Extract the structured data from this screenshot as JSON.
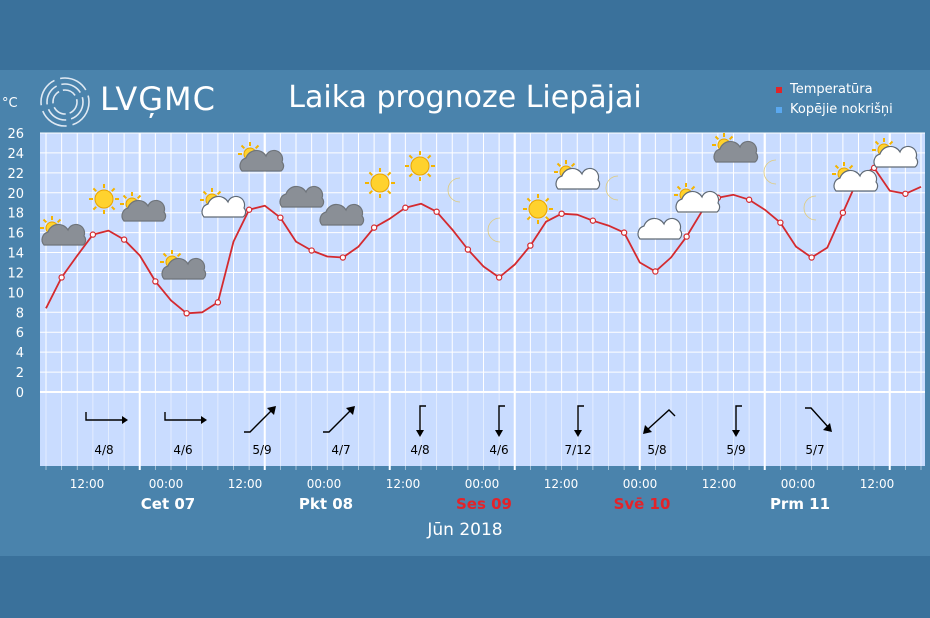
{
  "header": {
    "logo_text": "LVĢMC",
    "title": "Laika prognoze Liepājai",
    "unit": "°C"
  },
  "legend": [
    {
      "label": "Temperatūra",
      "color": "#e0252a"
    },
    {
      "label": "Kopējie nokrišņi",
      "color": "#5aa8f0"
    }
  ],
  "footer": {
    "month": "Jūn 2018"
  },
  "chart_data": {
    "type": "line",
    "ylim": [
      0,
      26
    ],
    "yticks": [
      0,
      2,
      4,
      6,
      8,
      10,
      12,
      14,
      16,
      18,
      20,
      22,
      24,
      26
    ],
    "xlim": [
      0,
      105
    ],
    "series": [
      {
        "name": "Temperatūra",
        "color": "#d42a2f",
        "points": [
          [
            0,
            8.4
          ],
          [
            3,
            11.5
          ],
          [
            6,
            13.7
          ],
          [
            9,
            15.8
          ],
          [
            12,
            16.2
          ],
          [
            15,
            15.3
          ],
          [
            18,
            13.7
          ],
          [
            21,
            11.1
          ],
          [
            24,
            9.2
          ],
          [
            27,
            7.9
          ],
          [
            30,
            8
          ],
          [
            33,
            9
          ],
          [
            36,
            15.1
          ],
          [
            39,
            18.3
          ],
          [
            42,
            18.7
          ],
          [
            45,
            17.5
          ],
          [
            48,
            15.1
          ],
          [
            51,
            14.2
          ],
          [
            54,
            13.6
          ],
          [
            57,
            13.5
          ],
          [
            60,
            14.6
          ],
          [
            63,
            16.5
          ],
          [
            66,
            17.4
          ],
          [
            69,
            18.5
          ],
          [
            72,
            18.9
          ],
          [
            75,
            18.1
          ],
          [
            78,
            16.3
          ],
          [
            81,
            14.3
          ],
          [
            84,
            12.6
          ],
          [
            87,
            11.5
          ],
          [
            90,
            12.8
          ],
          [
            93,
            14.7
          ],
          [
            96,
            17.1
          ],
          [
            99,
            17.9
          ],
          [
            102,
            17.8
          ],
          [
            105,
            17.2
          ]
        ],
        "points2": [
          [
            108,
            16.7
          ],
          [
            111,
            16
          ],
          [
            114,
            13
          ],
          [
            117,
            12.1
          ],
          [
            120,
            13.5
          ],
          [
            123,
            15.6
          ],
          [
            126,
            18.2
          ],
          [
            129,
            19.5
          ],
          [
            132,
            19.8
          ],
          [
            135,
            19.3
          ],
          [
            138,
            18.3
          ],
          [
            141,
            17
          ],
          [
            144,
            14.6
          ],
          [
            147,
            13.5
          ],
          [
            150,
            14.5
          ],
          [
            153,
            18
          ],
          [
            156,
            21.5
          ],
          [
            159,
            22.5
          ],
          [
            162,
            20.2
          ],
          [
            165,
            19.9
          ],
          [
            168,
            20.6
          ]
        ],
        "markers": [
          3,
          9,
          15,
          21,
          27,
          33,
          39,
          45,
          51,
          57,
          63,
          69,
          75,
          81,
          87,
          93,
          99,
          105,
          111,
          117,
          123,
          129,
          135,
          141,
          147,
          153,
          159,
          165
        ]
      }
    ],
    "xticks": [
      "12:00",
      "00:00",
      "12:00",
      "00:00",
      "12:00",
      "00:00",
      "12:00",
      "00:00",
      "12:00",
      "00:00",
      "12:00"
    ],
    "days": [
      {
        "label": "Cet 07",
        "color": "#ffffff"
      },
      {
        "label": "Pkt 08",
        "color": "#ffffff"
      },
      {
        "label": "Ses 09",
        "color": "#e3232a"
      },
      {
        "label": "Svē 10",
        "color": "#e3232a"
      },
      {
        "label": "Prm 11",
        "color": "#ffffff"
      }
    ],
    "wind": [
      {
        "label": "4/8",
        "dir": "E"
      },
      {
        "label": "4/6",
        "dir": "E"
      },
      {
        "label": "5/9",
        "dir": "NE"
      },
      {
        "label": "4/7",
        "dir": "NE"
      },
      {
        "label": "4/8",
        "dir": "S"
      },
      {
        "label": "4/6",
        "dir": "S"
      },
      {
        "label": "7/12",
        "dir": "S"
      },
      {
        "label": "5/8",
        "dir": "SW"
      },
      {
        "label": "5/9",
        "dir": "S"
      },
      {
        "label": "5/7",
        "dir": "SE"
      }
    ],
    "weather_icons": [
      {
        "type": "cloudy-sun",
        "name": "partly-cloudy-icon"
      },
      {
        "type": "sun",
        "name": "sun-icon"
      },
      {
        "type": "cloudy-sun",
        "name": "partly-cloudy-icon"
      },
      {
        "type": "cloudy-sun",
        "name": "partly-cloudy-icon"
      },
      {
        "type": "cloud-sun",
        "name": "cloud-sun-icon"
      },
      {
        "type": "cloudy-sun",
        "name": "partly-cloudy-icon"
      },
      {
        "type": "cloudy-moon",
        "name": "cloudy-night-icon"
      },
      {
        "type": "cloudy-moon",
        "name": "cloudy-night-icon"
      },
      {
        "type": "sun",
        "name": "sun-icon"
      },
      {
        "type": "sun",
        "name": "sun-icon"
      },
      {
        "type": "moon",
        "name": "moon-icon"
      },
      {
        "type": "moon",
        "name": "moon-icon"
      },
      {
        "type": "sun",
        "name": "sun-icon"
      },
      {
        "type": "cloud-sun",
        "name": "cloud-sun-icon"
      },
      {
        "type": "moon",
        "name": "moon-icon"
      },
      {
        "type": "cloud-moon",
        "name": "cloud-moon-icon"
      },
      {
        "type": "cloud-sun",
        "name": "cloud-sun-icon"
      },
      {
        "type": "cloudy-sun",
        "name": "partly-cloudy-icon"
      },
      {
        "type": "moon",
        "name": "moon-icon"
      },
      {
        "type": "moon",
        "name": "moon-icon"
      },
      {
        "type": "cloud-sun",
        "name": "cloud-sun-icon"
      },
      {
        "type": "cloud-sun",
        "name": "cloud-sun-icon"
      }
    ]
  }
}
